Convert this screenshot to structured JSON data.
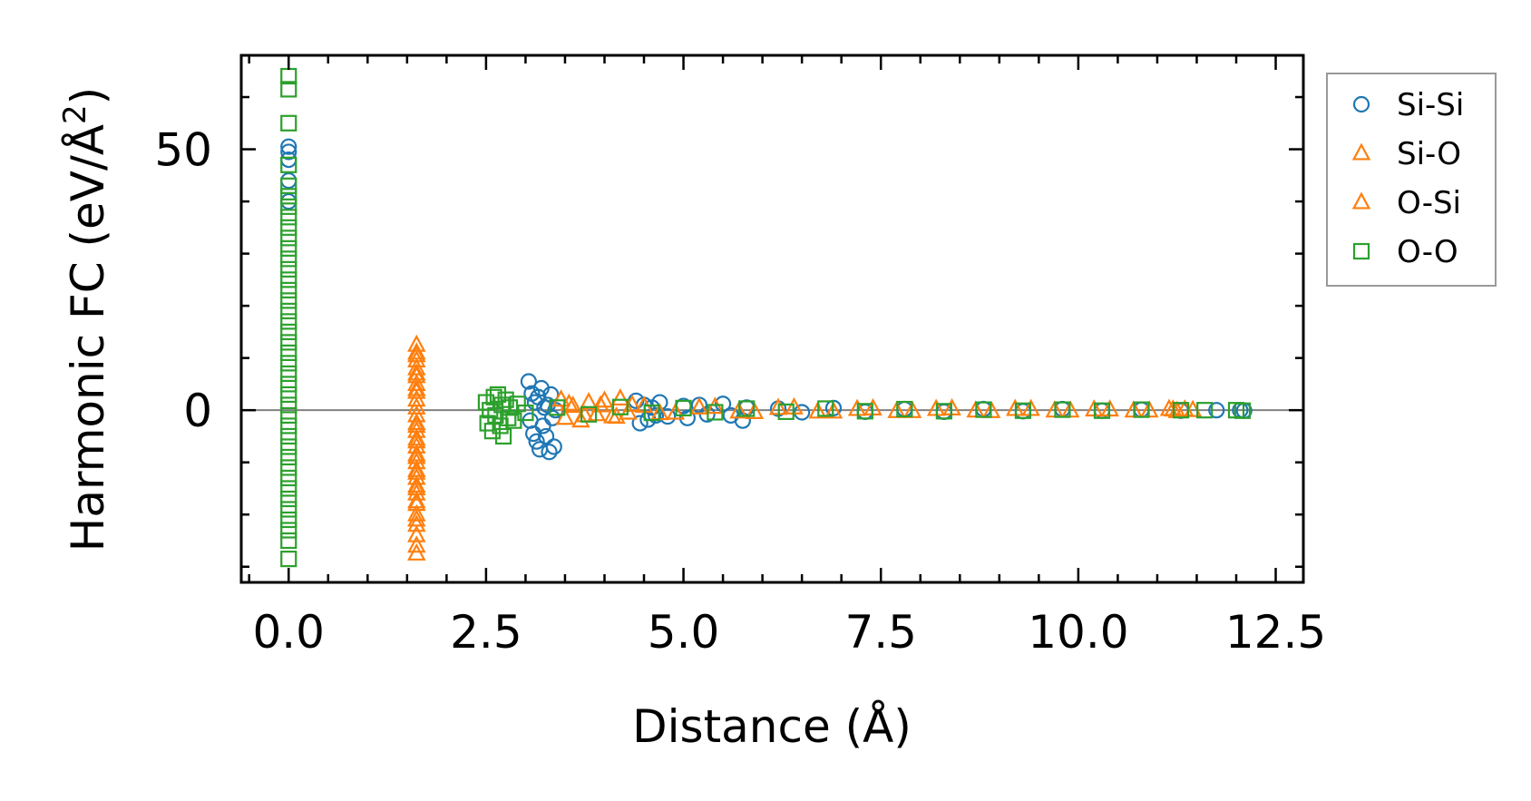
{
  "chart_data": {
    "type": "scatter",
    "title": "",
    "xlabel": "Distance (Å)",
    "ylabel": "Harmonic FC (eV/Å²)",
    "ylabel_parts": {
      "main": "Harmonic FC (eV/Å",
      "sup": "2",
      "close": ")"
    },
    "xlim": [
      -0.6,
      12.85
    ],
    "ylim": [
      -33,
      68
    ],
    "xticks": [
      0.0,
      2.5,
      5.0,
      7.5,
      10.0,
      12.5
    ],
    "xtick_labels": [
      "0.0",
      "2.5",
      "5.0",
      "7.5",
      "10.0",
      "12.5"
    ],
    "yticks": [
      0,
      50
    ],
    "ytick_labels": [
      "0",
      "50"
    ],
    "reference_line_y": 0,
    "legend_position": "outside-right-top",
    "series": [
      {
        "name": "Si-Si",
        "marker": "circle",
        "color": "#1f77b4",
        "points": [
          [
            0.0,
            50.5
          ],
          [
            0.0,
            49.5
          ],
          [
            0.0,
            48.0
          ],
          [
            0.0,
            44.0
          ],
          [
            0.0,
            40.0
          ],
          [
            3.04,
            5.5
          ],
          [
            3.06,
            -2.0
          ],
          [
            3.08,
            3.2
          ],
          [
            3.1,
            -4.5
          ],
          [
            3.12,
            1.5
          ],
          [
            3.14,
            -6.0
          ],
          [
            3.16,
            2.5
          ],
          [
            3.18,
            -7.5
          ],
          [
            3.2,
            4.2
          ],
          [
            3.22,
            -3.0
          ],
          [
            3.24,
            0.5
          ],
          [
            3.26,
            -5.0
          ],
          [
            3.28,
            1.0
          ],
          [
            3.3,
            -8.0
          ],
          [
            3.32,
            3.0
          ],
          [
            3.34,
            -1.5
          ],
          [
            3.36,
            -7.0
          ],
          [
            3.38,
            0.0
          ],
          [
            4.4,
            1.8
          ],
          [
            4.45,
            -2.5
          ],
          [
            4.5,
            1.0
          ],
          [
            4.55,
            -1.8
          ],
          [
            4.6,
            0.5
          ],
          [
            4.65,
            -1.0
          ],
          [
            4.7,
            1.5
          ],
          [
            4.8,
            -1.2
          ],
          [
            5.0,
            0.8
          ],
          [
            5.05,
            -1.5
          ],
          [
            5.2,
            1.0
          ],
          [
            5.3,
            -0.8
          ],
          [
            5.5,
            1.2
          ],
          [
            5.6,
            -1.0
          ],
          [
            5.75,
            -2.0
          ],
          [
            5.8,
            0.5
          ],
          [
            6.2,
            0.3
          ],
          [
            6.5,
            -0.4
          ],
          [
            6.9,
            0.4
          ],
          [
            7.3,
            -0.3
          ],
          [
            7.8,
            0.2
          ],
          [
            8.3,
            -0.3
          ],
          [
            8.8,
            0.2
          ],
          [
            9.3,
            -0.2
          ],
          [
            9.8,
            0.2
          ],
          [
            10.3,
            -0.1
          ],
          [
            10.8,
            0.1
          ],
          [
            11.3,
            -0.1
          ],
          [
            11.75,
            0.0
          ],
          [
            12.05,
            0.0
          ],
          [
            12.1,
            -0.1
          ]
        ]
      },
      {
        "name": "Si-O",
        "marker": "triangle",
        "color": "#ff7f0e",
        "points": [
          [
            1.62,
            12.5
          ],
          [
            1.62,
            11.0
          ],
          [
            1.62,
            9.5
          ],
          [
            1.62,
            8.0
          ],
          [
            1.62,
            6.5
          ],
          [
            1.62,
            5.0
          ],
          [
            1.62,
            3.5
          ],
          [
            1.62,
            2.0
          ],
          [
            1.62,
            0.5
          ],
          [
            1.62,
            -1.0
          ],
          [
            1.62,
            -2.5
          ],
          [
            1.62,
            -4.0
          ],
          [
            1.62,
            -5.5
          ],
          [
            1.62,
            -7.0
          ],
          [
            1.62,
            -8.5
          ],
          [
            1.62,
            -10.0
          ],
          [
            1.62,
            -11.5
          ],
          [
            1.62,
            -13.0
          ],
          [
            1.62,
            -14.5
          ],
          [
            1.62,
            -16.0
          ],
          [
            1.62,
            -17.5
          ],
          [
            1.62,
            -20.0
          ],
          [
            1.62,
            -22.0
          ],
          [
            1.62,
            -24.0
          ],
          [
            1.62,
            -26.0
          ],
          [
            1.62,
            -27.5
          ],
          [
            3.45,
            2.0
          ],
          [
            3.5,
            -1.5
          ],
          [
            3.6,
            0.8
          ],
          [
            3.7,
            -2.0
          ],
          [
            3.8,
            1.5
          ],
          [
            3.9,
            -0.8
          ],
          [
            4.0,
            1.8
          ],
          [
            4.1,
            -1.2
          ],
          [
            4.2,
            2.2
          ],
          [
            4.3,
            -0.5
          ],
          [
            4.5,
            0.8
          ],
          [
            4.9,
            -0.5
          ],
          [
            5.4,
            0.6
          ],
          [
            5.9,
            -0.4
          ],
          [
            6.4,
            0.5
          ],
          [
            6.9,
            -0.3
          ],
          [
            7.4,
            0.3
          ],
          [
            7.9,
            -0.2
          ],
          [
            8.4,
            0.3
          ],
          [
            8.9,
            -0.2
          ],
          [
            9.4,
            0.2
          ],
          [
            9.9,
            -0.1
          ],
          [
            10.4,
            0.1
          ],
          [
            10.9,
            -0.1
          ],
          [
            11.15,
            0.2
          ],
          [
            11.25,
            -0.2
          ],
          [
            11.35,
            0.1
          ]
        ]
      },
      {
        "name": "O-Si",
        "marker": "triangle",
        "color": "#ff7f0e",
        "points": [
          [
            1.62,
            10.5
          ],
          [
            1.62,
            7.0
          ],
          [
            1.62,
            4.0
          ],
          [
            1.62,
            -3.0
          ],
          [
            1.62,
            -6.0
          ],
          [
            1.62,
            -9.0
          ],
          [
            1.62,
            -12.0
          ],
          [
            1.62,
            -15.0
          ],
          [
            1.62,
            -18.0
          ],
          [
            1.62,
            -21.0
          ],
          [
            3.55,
            1.2
          ],
          [
            3.75,
            -1.0
          ],
          [
            3.95,
            0.9
          ],
          [
            4.15,
            -1.3
          ],
          [
            4.35,
            1.0
          ],
          [
            4.7,
            -0.6
          ],
          [
            5.2,
            0.5
          ],
          [
            5.7,
            -0.3
          ],
          [
            6.2,
            0.4
          ],
          [
            6.7,
            -0.3
          ],
          [
            7.2,
            0.2
          ],
          [
            7.7,
            -0.2
          ],
          [
            8.2,
            0.2
          ],
          [
            8.7,
            -0.1
          ],
          [
            9.2,
            0.2
          ],
          [
            9.7,
            -0.1
          ],
          [
            10.2,
            0.1
          ],
          [
            10.7,
            -0.1
          ],
          [
            11.2,
            0.1
          ],
          [
            11.45,
            0.0
          ]
        ]
      },
      {
        "name": "O-O",
        "marker": "square",
        "color": "#2ca02c",
        "points": [
          [
            0.0,
            64.0
          ],
          [
            0.0,
            61.5
          ],
          [
            0.0,
            55.0
          ],
          [
            0.0,
            47.0
          ],
          [
            0.0,
            43.0
          ],
          [
            0.0,
            41.0
          ],
          [
            0.0,
            39.0
          ],
          [
            0.0,
            37.0
          ],
          [
            0.0,
            35.0
          ],
          [
            0.0,
            33.0
          ],
          [
            0.0,
            31.0
          ],
          [
            0.0,
            29.0
          ],
          [
            0.0,
            27.0
          ],
          [
            0.0,
            25.0
          ],
          [
            0.0,
            23.0
          ],
          [
            0.0,
            21.0
          ],
          [
            0.0,
            19.0
          ],
          [
            0.0,
            17.0
          ],
          [
            0.0,
            15.0
          ],
          [
            0.0,
            13.0
          ],
          [
            0.0,
            11.0
          ],
          [
            0.0,
            9.0
          ],
          [
            0.0,
            7.0
          ],
          [
            0.0,
            5.0
          ],
          [
            0.0,
            3.0
          ],
          [
            0.0,
            1.0
          ],
          [
            0.0,
            -1.0
          ],
          [
            0.0,
            -3.0
          ],
          [
            0.0,
            -5.0
          ],
          [
            0.0,
            -7.0
          ],
          [
            0.0,
            -9.0
          ],
          [
            0.0,
            -11.0
          ],
          [
            0.0,
            -13.0
          ],
          [
            0.0,
            -15.0
          ],
          [
            0.0,
            -17.0
          ],
          [
            0.0,
            -19.0
          ],
          [
            0.0,
            -21.0
          ],
          [
            0.0,
            -23.0
          ],
          [
            0.0,
            -25.0
          ],
          [
            0.0,
            -28.5
          ],
          [
            2.5,
            1.5
          ],
          [
            2.52,
            -2.5
          ],
          [
            2.55,
            0.0
          ],
          [
            2.58,
            -4.0
          ],
          [
            2.6,
            2.5
          ],
          [
            2.62,
            -1.0
          ],
          [
            2.65,
            3.0
          ],
          [
            2.68,
            -3.0
          ],
          [
            2.7,
            1.0
          ],
          [
            2.72,
            -5.0
          ],
          [
            2.75,
            2.0
          ],
          [
            2.78,
            -1.5
          ],
          [
            2.8,
            0.5
          ],
          [
            2.85,
            -2.0
          ],
          [
            2.9,
            1.2
          ],
          [
            3.0,
            -0.5
          ],
          [
            3.4,
            0.5
          ],
          [
            3.8,
            -0.8
          ],
          [
            4.2,
            0.6
          ],
          [
            4.6,
            -0.5
          ],
          [
            5.0,
            0.4
          ],
          [
            5.4,
            -0.4
          ],
          [
            5.8,
            0.3
          ],
          [
            6.3,
            -0.3
          ],
          [
            6.8,
            0.3
          ],
          [
            7.3,
            -0.2
          ],
          [
            7.8,
            0.2
          ],
          [
            8.3,
            -0.2
          ],
          [
            8.8,
            0.1
          ],
          [
            9.3,
            -0.1
          ],
          [
            9.8,
            0.1
          ],
          [
            10.3,
            -0.1
          ],
          [
            10.8,
            0.1
          ],
          [
            11.3,
            0.0
          ],
          [
            11.6,
            0.0
          ],
          [
            12.0,
            0.0
          ],
          [
            12.08,
            -0.1
          ]
        ]
      }
    ]
  }
}
